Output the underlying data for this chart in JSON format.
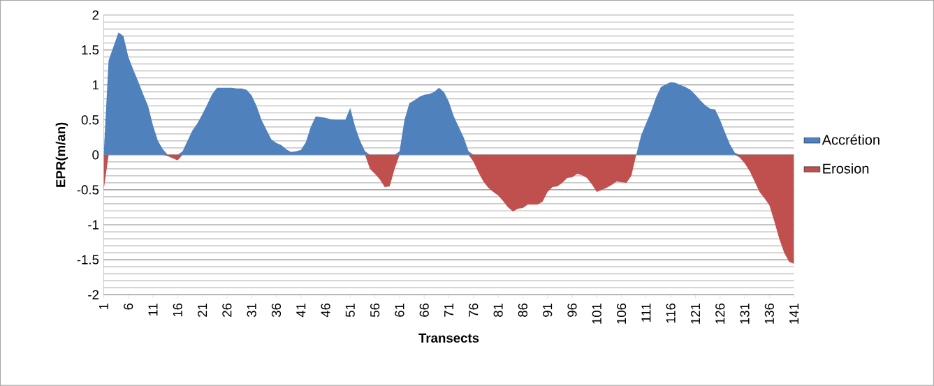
{
  "chart_data": {
    "type": "area",
    "xlabel": "Transects",
    "ylabel": "EPR(m/an)",
    "categories": [
      "1",
      null,
      null,
      null,
      null,
      "6",
      null,
      null,
      null,
      null,
      "11",
      null,
      null,
      null,
      null,
      "16",
      null,
      null,
      null,
      null,
      "21",
      null,
      null,
      null,
      null,
      "26",
      null,
      null,
      null,
      null,
      "31",
      null,
      null,
      null,
      null,
      "36",
      null,
      null,
      null,
      null,
      "41",
      null,
      null,
      null,
      null,
      "46",
      null,
      null,
      null,
      null,
      "51",
      null,
      null,
      null,
      null,
      "56",
      null,
      null,
      null,
      null,
      "61",
      null,
      null,
      null,
      null,
      "66",
      null,
      null,
      null,
      null,
      "71",
      null,
      null,
      null,
      null,
      "76",
      null,
      null,
      null,
      null,
      "81",
      null,
      null,
      null,
      null,
      "86",
      null,
      null,
      null,
      null,
      "91",
      null,
      null,
      null,
      null,
      "96",
      null,
      null,
      null,
      null,
      "101",
      null,
      null,
      null,
      null,
      "106",
      null,
      null,
      null,
      null,
      "111",
      null,
      null,
      null,
      null,
      "116",
      null,
      null,
      null,
      null,
      "121",
      null,
      null,
      null,
      null,
      "126",
      null,
      null,
      null,
      null,
      "131",
      null,
      null,
      null,
      null,
      "136",
      null,
      null,
      null,
      null,
      "141"
    ],
    "series": [
      {
        "name": "Accrétion",
        "color": "#4f81bd",
        "values": [
          0,
          1.35,
          1.55,
          1.75,
          1.7,
          1.4,
          1.22,
          1.05,
          0.87,
          0.7,
          0.42,
          0.2,
          0.08,
          0,
          0,
          0,
          0.05,
          0.2,
          0.35,
          0.45,
          0.58,
          0.72,
          0.87,
          0.96,
          0.96,
          0.96,
          0.96,
          0.95,
          0.95,
          0.93,
          0.85,
          0.7,
          0.5,
          0.36,
          0.22,
          0.17,
          0.14,
          0.08,
          0.04,
          0.05,
          0.07,
          0.18,
          0.4,
          0.55,
          0.54,
          0.53,
          0.51,
          0.5,
          0.5,
          0.5,
          0.67,
          0.4,
          0.2,
          0.05,
          0,
          0,
          0,
          0,
          0,
          0,
          0.05,
          0.5,
          0.74,
          0.78,
          0.83,
          0.86,
          0.87,
          0.9,
          0.96,
          0.9,
          0.76,
          0.55,
          0.4,
          0.25,
          0.05,
          0,
          0,
          0,
          0,
          0,
          0,
          0,
          0,
          0,
          0,
          0,
          0,
          0,
          0,
          0,
          0,
          0,
          0,
          0,
          0,
          0,
          0,
          0,
          0,
          0,
          0,
          0,
          0,
          0,
          0,
          0,
          0,
          0,
          0,
          0.28,
          0.45,
          0.62,
          0.82,
          0.97,
          1.01,
          1.04,
          1.03,
          1.0,
          0.97,
          0.93,
          0.86,
          0.78,
          0.71,
          0.66,
          0.65,
          0.5,
          0.32,
          0.15,
          0.03,
          0,
          0,
          0,
          0,
          0,
          0,
          0,
          0,
          0,
          0,
          0,
          0
        ]
      },
      {
        "name": "Erosion",
        "color": "#c0504d",
        "values": [
          -0.5,
          0,
          0,
          0,
          0,
          0,
          0,
          0,
          0,
          0,
          0,
          0,
          0,
          -0.02,
          -0.05,
          -0.08,
          0,
          0,
          0,
          0,
          0,
          0,
          0,
          0,
          0,
          0,
          0,
          0,
          0,
          0,
          0,
          0,
          0,
          0,
          0,
          0,
          0,
          0,
          0,
          0,
          0,
          0,
          0,
          0,
          0,
          0,
          0,
          0,
          0,
          0,
          0,
          0,
          0,
          0,
          -0.2,
          -0.27,
          -0.35,
          -0.46,
          -0.45,
          -0.2,
          0,
          0,
          0,
          0,
          0,
          0,
          0,
          0,
          0,
          0,
          0,
          0,
          0,
          0,
          0,
          -0.1,
          -0.25,
          -0.38,
          -0.47,
          -0.53,
          -0.58,
          -0.66,
          -0.75,
          -0.81,
          -0.77,
          -0.76,
          -0.71,
          -0.71,
          -0.71,
          -0.67,
          -0.53,
          -0.46,
          -0.45,
          -0.4,
          -0.33,
          -0.32,
          -0.27,
          -0.29,
          -0.33,
          -0.42,
          -0.53,
          -0.5,
          -0.47,
          -0.43,
          -0.38,
          -0.39,
          -0.4,
          -0.3,
          0,
          0,
          0,
          0,
          0,
          0,
          0,
          0,
          0,
          0,
          0,
          0,
          0,
          0,
          0,
          0,
          0,
          0,
          0,
          0,
          0,
          -0.04,
          -0.12,
          -0.23,
          -0.38,
          -0.53,
          -0.62,
          -0.72,
          -0.95,
          -1.2,
          -1.4,
          -1.53,
          -1.56
        ]
      }
    ],
    "ylim": [
      -2,
      2
    ],
    "yticks": [
      -2,
      -1.5,
      -1,
      -0.5,
      0,
      0.5,
      1,
      1.5,
      2
    ],
    "grid": "y",
    "legend": "right"
  }
}
